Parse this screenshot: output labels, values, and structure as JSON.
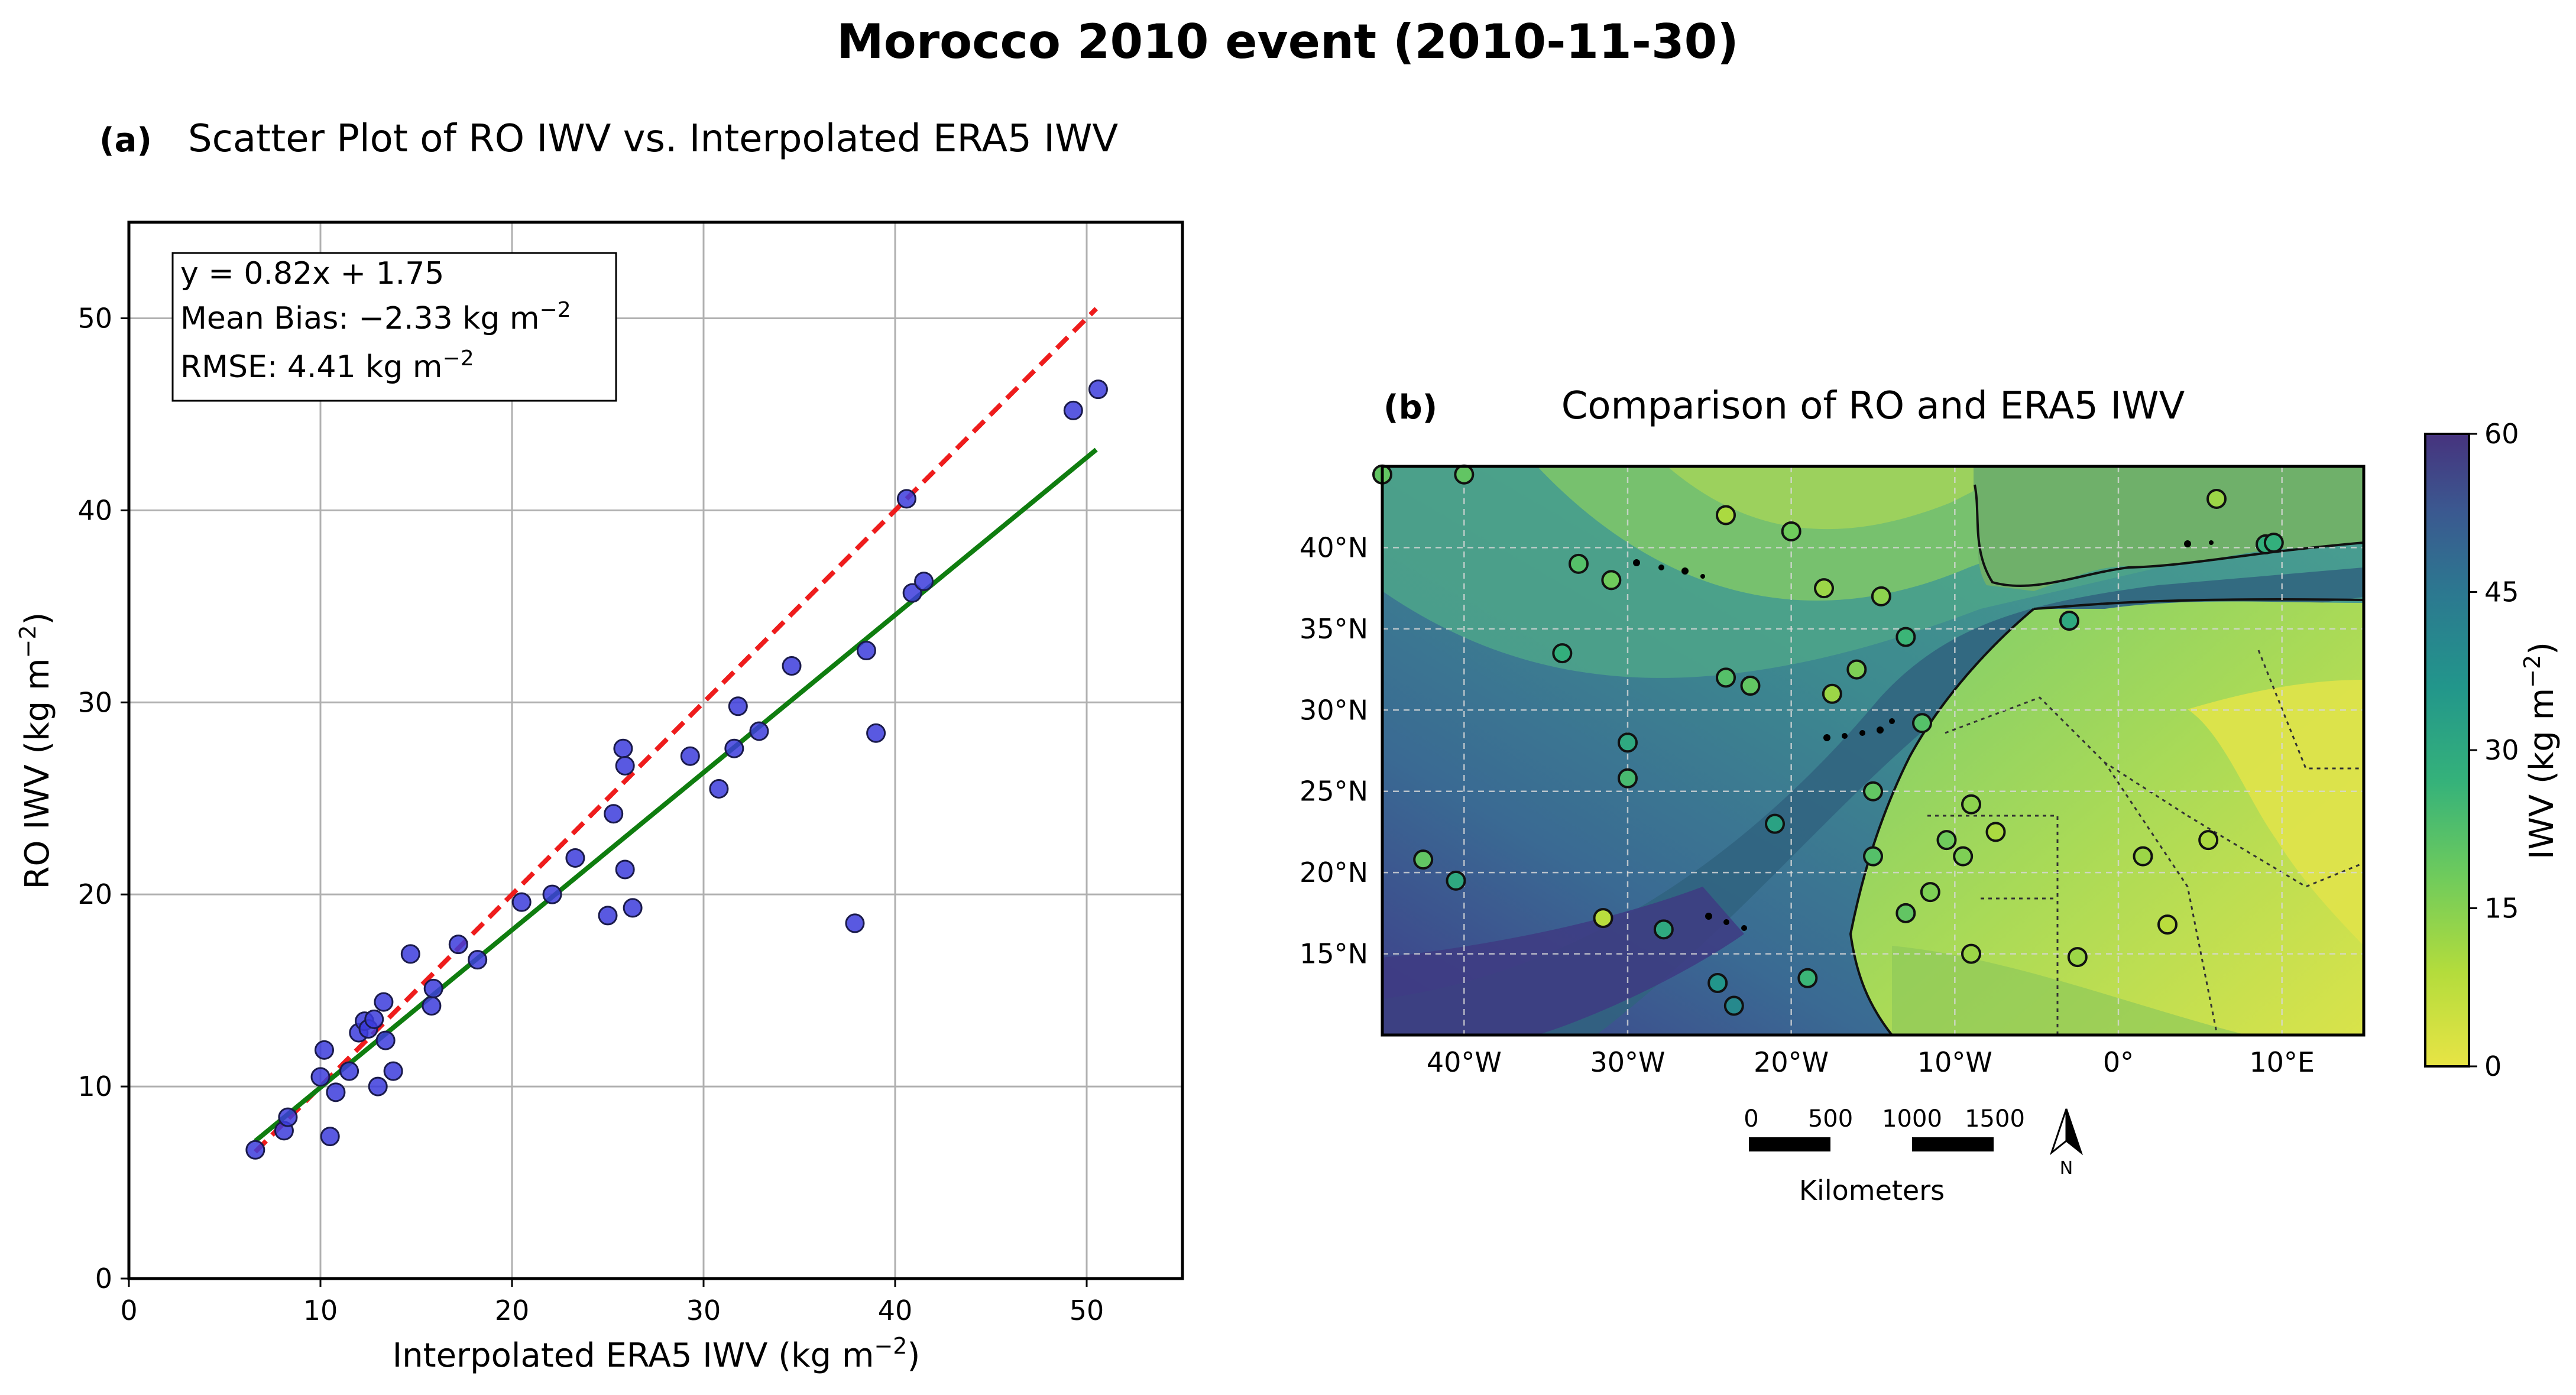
{
  "figure": {
    "title": "Morocco 2010 event (2010-11-30)"
  },
  "chart_data": [
    {
      "type": "scatter",
      "panel": "(a)",
      "title": "Scatter Plot of RO IWV vs. Interpolated ERA5 IWV",
      "xlabel": "Interpolated ERA5 IWV (kg m",
      "ylabel": "RO IWV (kg m",
      "unit_exponent": "−2",
      "xlim": [
        0,
        55
      ],
      "ylim": [
        0,
        55
      ],
      "xticks": [
        "0",
        "10",
        "20",
        "30",
        "40",
        "50"
      ],
      "yticks": [
        "0",
        "10",
        "20",
        "30",
        "40",
        "50"
      ],
      "grid": true,
      "stats": {
        "fit": "y = 0.82x + 1.75",
        "bias_label": "Mean Bias: −2.33 kg m",
        "rmse_label": "RMSE: 4.41 kg m",
        "sup": "−2",
        "slope": 0.82,
        "intercept": 1.75
      },
      "lines": [
        {
          "name": "1:1 line",
          "style": "dashed",
          "color": "#ee1c1c",
          "x": [
            6.6,
            50.5
          ],
          "y": [
            6.6,
            50.5
          ]
        },
        {
          "name": "regression fit",
          "style": "solid",
          "color": "#0f7d0f",
          "x": [
            6.6,
            50.5
          ],
          "y": [
            7.16,
            43.16
          ]
        }
      ],
      "points_color": "#3c3cdc",
      "points": {
        "x": [
          6.6,
          8.1,
          8.3,
          10.0,
          10.2,
          10.5,
          10.8,
          11.5,
          12.0,
          12.3,
          12.5,
          12.8,
          13.0,
          13.3,
          13.4,
          13.8,
          14.7,
          15.8,
          15.9,
          17.2,
          18.2,
          20.5,
          22.1,
          23.3,
          25.0,
          25.3,
          25.8,
          25.9,
          25.9,
          26.3,
          29.3,
          30.8,
          31.6,
          31.8,
          32.9,
          34.6,
          37.9,
          38.5,
          39.0,
          40.6,
          40.9,
          41.5,
          49.3,
          50.6
        ],
        "y": [
          6.7,
          7.7,
          8.4,
          10.5,
          11.9,
          7.4,
          9.7,
          10.8,
          12.8,
          13.4,
          13.0,
          13.5,
          10.0,
          14.4,
          12.4,
          10.8,
          16.9,
          14.2,
          15.1,
          17.4,
          16.6,
          19.6,
          20.0,
          21.9,
          18.9,
          24.2,
          27.6,
          26.7,
          21.3,
          19.3,
          27.2,
          25.5,
          27.6,
          29.8,
          28.5,
          31.9,
          18.5,
          32.7,
          28.4,
          40.6,
          35.7,
          36.3,
          45.2,
          46.3
        ]
      }
    },
    {
      "type": "heatmap",
      "panel": "(b)",
      "title": "Comparison of RO and ERA5 IWV",
      "lon_range": [
        -45,
        15
      ],
      "lat_range": [
        10,
        45
      ],
      "xticks": [
        "40°W",
        "30°W",
        "20°W",
        "10°W",
        "0°",
        "10°E"
      ],
      "yticks": [
        "40°N",
        "35°N",
        "30°N",
        "25°N",
        "20°N",
        "15°N"
      ],
      "colorbar": {
        "label": "IWV (kg m",
        "sup": "−2",
        "range": [
          0,
          60
        ],
        "ticks": [
          "0",
          "15",
          "30",
          "45",
          "60"
        ],
        "colormap": "viridis_r"
      },
      "scale_bar": {
        "labels": [
          "0",
          "500",
          "1000",
          "1500"
        ],
        "unit": "Kilometers"
      },
      "north_arrow": "N",
      "stations": {
        "lon": [
          -45,
          -40,
          -33,
          -31,
          -30,
          -34,
          -30,
          -40.5,
          -42.5,
          -31.5,
          -27.8,
          -24,
          -22.5,
          -24,
          -20,
          -18,
          -16,
          -14.5,
          -13,
          -17.5,
          -15,
          -21,
          -24.5,
          -23.5,
          -19,
          -15,
          -13,
          -11.5,
          -10.5,
          -12,
          -9,
          -9,
          -9.5,
          -7.5,
          -3,
          -2.5,
          1.5,
          3,
          5.5,
          9,
          9.5,
          6
        ],
        "lat": [
          44.5,
          44.5,
          39.0,
          38.0,
          25.8,
          33.5,
          28.0,
          19.5,
          20.8,
          17.2,
          16.5,
          42.0,
          31.5,
          32.0,
          41.0,
          37.5,
          32.5,
          37.0,
          34.5,
          31.0,
          21.0,
          23.0,
          13.2,
          11.8,
          13.5,
          25.0,
          17.5,
          18.8,
          22.0,
          29.2,
          24.2,
          15.0,
          21.0,
          22.5,
          35.5,
          14.8,
          21.0,
          16.8,
          22.0,
          40.2,
          40.3,
          43.0
        ],
        "iwv": [
          20,
          20,
          22,
          18,
          24,
          28,
          30,
          30,
          20,
          8,
          30,
          10,
          20,
          22,
          18,
          12,
          16,
          14,
          26,
          12,
          22,
          32,
          36,
          40,
          26,
          20,
          20,
          16,
          18,
          22,
          14,
          12,
          16,
          10,
          30,
          12,
          12,
          8,
          10,
          28,
          28,
          12
        ]
      }
    }
  ]
}
